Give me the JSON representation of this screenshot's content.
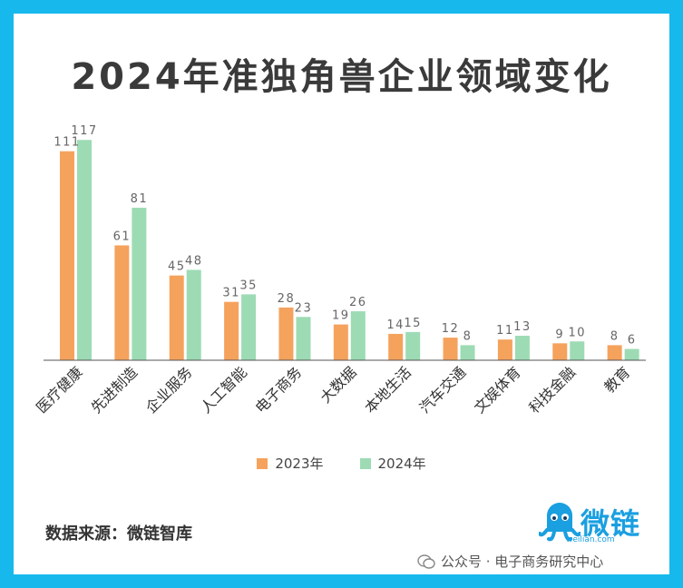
{
  "title": "2024年准独角兽企业领域变化",
  "chart_data": {
    "type": "bar",
    "title": "2024年准独角兽企业领域变化",
    "categories": [
      "医疗健康",
      "先进制造",
      "企业服务",
      "人工智能",
      "电子商务",
      "大数据",
      "本地生活",
      "汽车交通",
      "文娱体育",
      "科技金融",
      "教育"
    ],
    "series": [
      {
        "name": "2023年",
        "values": [
          111,
          61,
          45,
          31,
          28,
          19,
          14,
          12,
          11,
          9,
          8
        ],
        "color": "#f5a25d"
      },
      {
        "name": "2024年",
        "values": [
          117,
          81,
          48,
          35,
          23,
          26,
          15,
          8,
          13,
          10,
          6
        ],
        "color": "#9ddbb4"
      }
    ],
    "ylim": [
      0,
      120
    ],
    "grid": false,
    "legend_position": "bottom"
  },
  "source": "数据来源：微链智库",
  "logo": {
    "name": "微链",
    "sub": "weilian.com"
  },
  "watermark": "公众号 · 电子商务研究中心"
}
